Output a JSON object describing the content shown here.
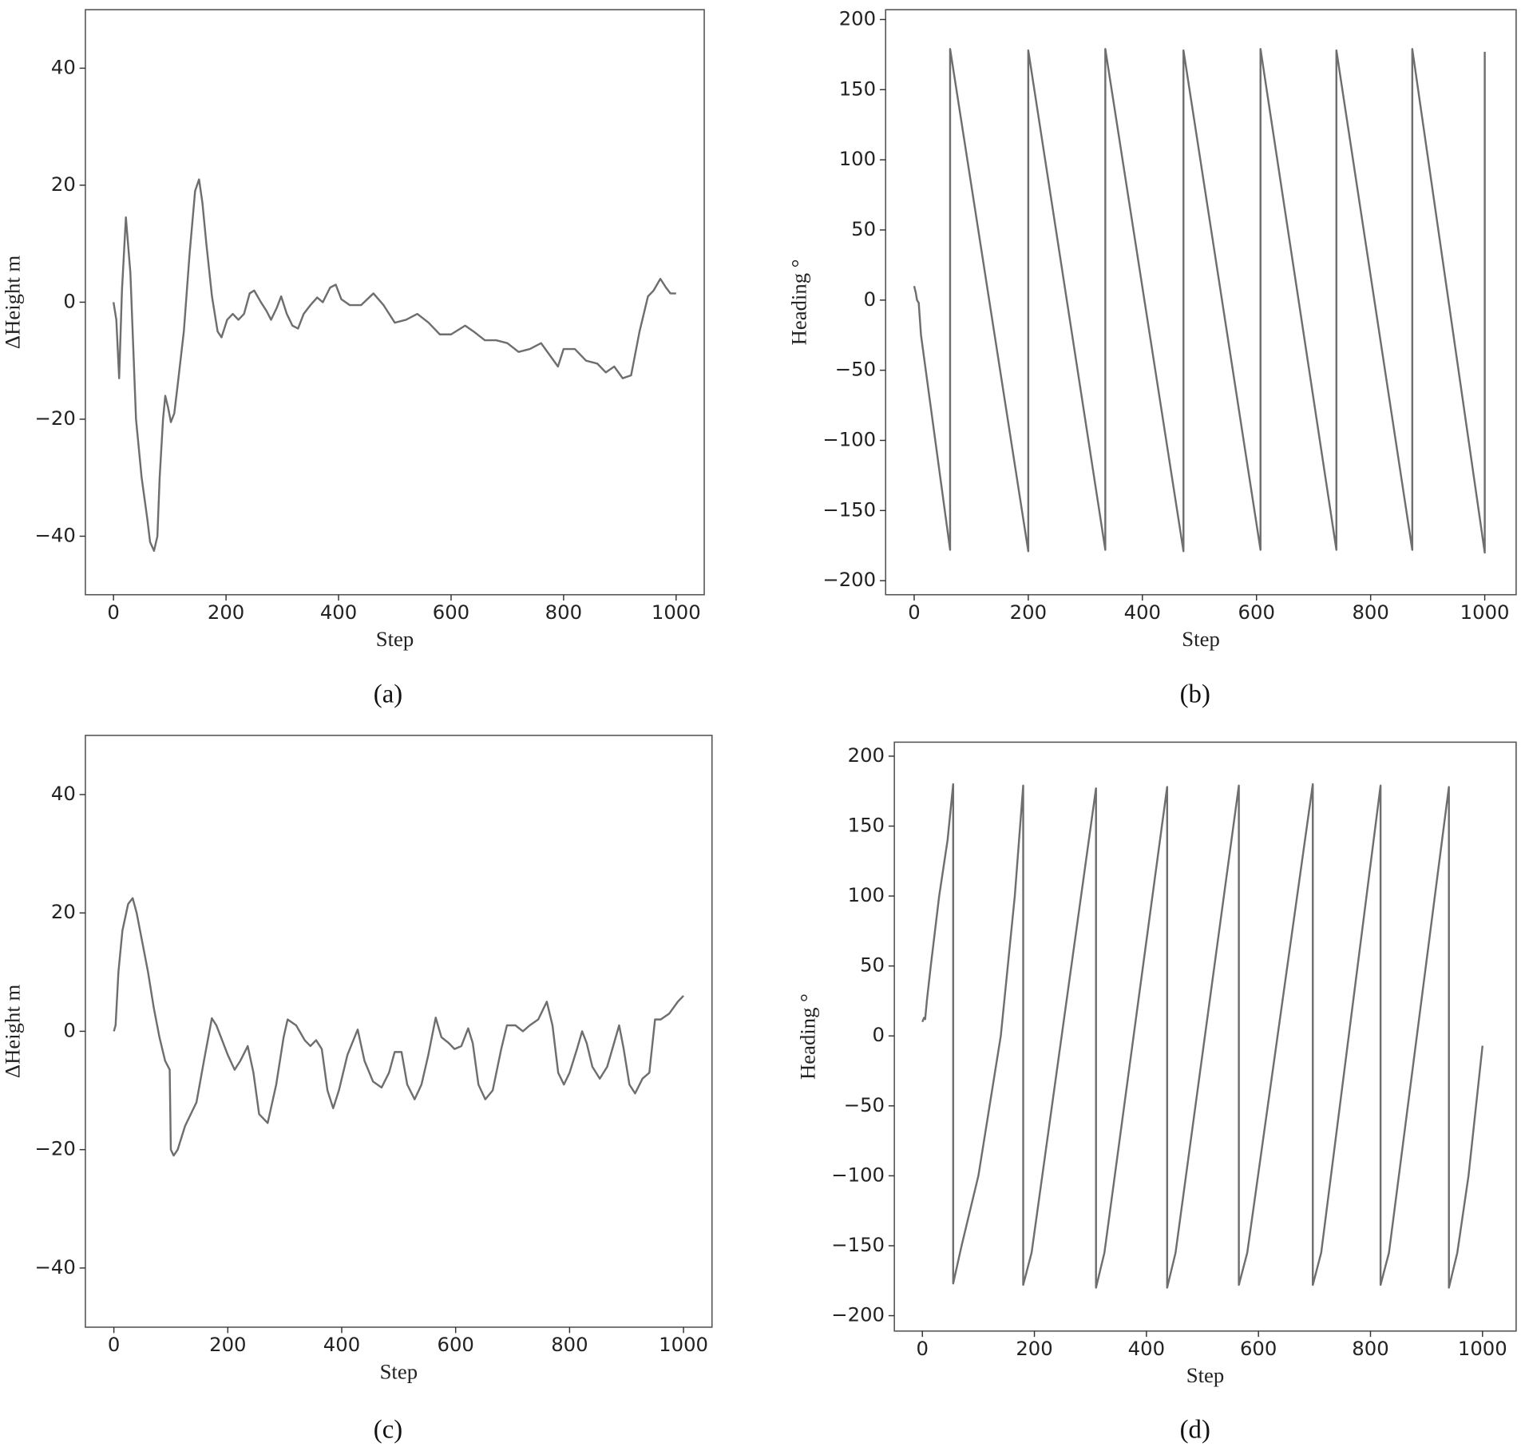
{
  "chart_data": [
    {
      "type": "line",
      "caption": "(a)",
      "xlabel": "Step",
      "ylabel": "ΔHeight m",
      "color": "#6e6e6e",
      "xlim": [
        -50,
        1050
      ],
      "ylim": [
        -50,
        50
      ],
      "xticks": [
        0,
        200,
        400,
        600,
        800,
        1000
      ],
      "yticks": [
        {
          "value": -40,
          "label": "−40"
        },
        {
          "value": -20,
          "label": "−20"
        },
        0,
        20,
        40
      ],
      "x": [
        0,
        5,
        10,
        15,
        22,
        30,
        40,
        50,
        60,
        65,
        72,
        78,
        82,
        88,
        92,
        97,
        102,
        108,
        113,
        125,
        135,
        145,
        152,
        158,
        165,
        175,
        185,
        192,
        202,
        212,
        222,
        232,
        242,
        250,
        262,
        272,
        280,
        290,
        298,
        308,
        318,
        328,
        338,
        350,
        362,
        372,
        385,
        395,
        405,
        420,
        440,
        462,
        480,
        500,
        520,
        540,
        560,
        580,
        600,
        625,
        640,
        660,
        680,
        700,
        720,
        740,
        760,
        775,
        790,
        800,
        820,
        840,
        860,
        875,
        890,
        905,
        920,
        935,
        950,
        960,
        972,
        982,
        990,
        1000
      ],
      "values": [
        0,
        -3,
        -13,
        2,
        14.5,
        5,
        -20,
        -30,
        -37,
        -41,
        -42.5,
        -40,
        -30,
        -20,
        -16,
        -18,
        -20.5,
        -19,
        -15,
        -5,
        8,
        19,
        21,
        17,
        10,
        1,
        -5,
        -6,
        -3,
        -2,
        -3,
        -2,
        1.5,
        2,
        0,
        -1.5,
        -3,
        -1,
        1,
        -2,
        -4,
        -4.5,
        -2,
        -0.5,
        0.8,
        0,
        2.5,
        3,
        0.5,
        -0.5,
        -0.5,
        1.5,
        -0.5,
        -3.5,
        -3,
        -2,
        -3.5,
        -5.5,
        -5.5,
        -4,
        -5,
        -6.5,
        -6.5,
        -7,
        -8.5,
        -8,
        -7,
        -9,
        -11,
        -8,
        -8,
        -10,
        -10.5,
        -12,
        -11,
        -13,
        -12.5,
        -5,
        1,
        2,
        4,
        2.5,
        1.5,
        1.5
      ]
    },
    {
      "type": "line",
      "caption": "(b)",
      "xlabel": "Step",
      "ylabel": "Heading °",
      "color": "#6e6e6e",
      "xlim": [
        -50,
        1055
      ],
      "ylim": [
        -210,
        207
      ],
      "xticks": [
        0,
        200,
        400,
        600,
        800,
        1000
      ],
      "yticks": [
        {
          "value": -200,
          "label": "−200"
        },
        {
          "value": -150,
          "label": "−150"
        },
        {
          "value": -100,
          "label": "−100"
        },
        {
          "value": -50,
          "label": "−50"
        },
        0,
        50,
        100,
        150,
        200
      ],
      "x": [
        0,
        3,
        5,
        8,
        12,
        63,
        63,
        200,
        200,
        335,
        335,
        472,
        472,
        607,
        607,
        740,
        740,
        873,
        873,
        1000,
        1000
      ],
      "values": [
        10,
        5,
        0,
        -2,
        -25,
        -178,
        179,
        -179,
        178,
        -178,
        179,
        -179,
        178,
        -178,
        179,
        -178,
        178,
        -178,
        179,
        -180,
        177
      ]
    },
    {
      "type": "line",
      "caption": "(c)",
      "xlabel": "Step",
      "ylabel": "ΔHeight m",
      "color": "#6e6e6e",
      "xlim": [
        -50,
        1050
      ],
      "ylim": [
        -50,
        50
      ],
      "xticks": [
        0,
        200,
        400,
        600,
        800,
        1000
      ],
      "yticks": [
        {
          "value": -40,
          "label": "−40"
        },
        {
          "value": -20,
          "label": "−20"
        },
        0,
        20,
        40
      ],
      "x": [
        0,
        3,
        8,
        15,
        25,
        33,
        40,
        50,
        60,
        70,
        80,
        90,
        98,
        100,
        105,
        112,
        125,
        145,
        160,
        172,
        180,
        190,
        200,
        212,
        222,
        235,
        245,
        255,
        270,
        285,
        298,
        305,
        320,
        335,
        345,
        355,
        365,
        375,
        385,
        395,
        410,
        428,
        440,
        455,
        470,
        483,
        493,
        505,
        515,
        528,
        540,
        552,
        565,
        575,
        588,
        598,
        610,
        622,
        630,
        640,
        652,
        665,
        680,
        690,
        705,
        718,
        730,
        745,
        760,
        770,
        780,
        790,
        800,
        813,
        822,
        830,
        840,
        853,
        866,
        878,
        887,
        895,
        905,
        915,
        928,
        940,
        950,
        960,
        975,
        990,
        1000
      ],
      "values": [
        0,
        1,
        10,
        17,
        21.5,
        22.5,
        20,
        15,
        10,
        4,
        -1,
        -5,
        -6.5,
        -20,
        -21,
        -20,
        -16,
        -12,
        -4,
        2.2,
        1,
        -1.5,
        -4,
        -6.5,
        -5,
        -2.5,
        -7,
        -14,
        -15.5,
        -9,
        -1,
        2,
        1,
        -1.5,
        -2.5,
        -1.5,
        -3,
        -10,
        -13,
        -10,
        -4,
        0.3,
        -5,
        -8.5,
        -9.5,
        -7,
        -3.5,
        -3.5,
        -9,
        -11.5,
        -9,
        -4,
        2.3,
        -1,
        -2,
        -3,
        -2.5,
        0.5,
        -2,
        -9,
        -11.5,
        -10,
        -3,
        1,
        1,
        0,
        1,
        2,
        5,
        1,
        -7,
        -9,
        -7,
        -3,
        0,
        -2,
        -6,
        -8,
        -6,
        -2,
        1,
        -3,
        -9,
        -10.5,
        -8,
        -7,
        2,
        2,
        3,
        5,
        6
      ]
    },
    {
      "type": "line",
      "caption": "(d)",
      "xlabel": "Step",
      "ylabel": "Heading °",
      "color": "#6e6e6e",
      "xlim": [
        -50,
        1060
      ],
      "ylim": [
        -211,
        210
      ],
      "xticks": [
        0,
        200,
        400,
        600,
        800,
        1000
      ],
      "yticks": [
        {
          "value": -200,
          "label": "−200"
        },
        {
          "value": -150,
          "label": "−150"
        },
        {
          "value": -100,
          "label": "−100"
        },
        {
          "value": -50,
          "label": "−50"
        },
        0,
        50,
        100,
        150,
        200
      ],
      "x": [
        0,
        3,
        5,
        8,
        15,
        30,
        45,
        55,
        55,
        70,
        100,
        140,
        165,
        180,
        180,
        195,
        310,
        310,
        325,
        437,
        437,
        452,
        565,
        565,
        580,
        697,
        697,
        712,
        818,
        818,
        833,
        940,
        940,
        955,
        975,
        1000
      ],
      "values": [
        10,
        13,
        12,
        25,
        50,
        100,
        140,
        180,
        -177,
        -150,
        -100,
        0,
        100,
        179,
        -178,
        -155,
        177,
        -180,
        -155,
        178,
        -180,
        -155,
        179,
        -178,
        -155,
        180,
        -178,
        -155,
        179,
        -178,
        -155,
        178,
        -180,
        -155,
        -100,
        -7
      ]
    }
  ]
}
